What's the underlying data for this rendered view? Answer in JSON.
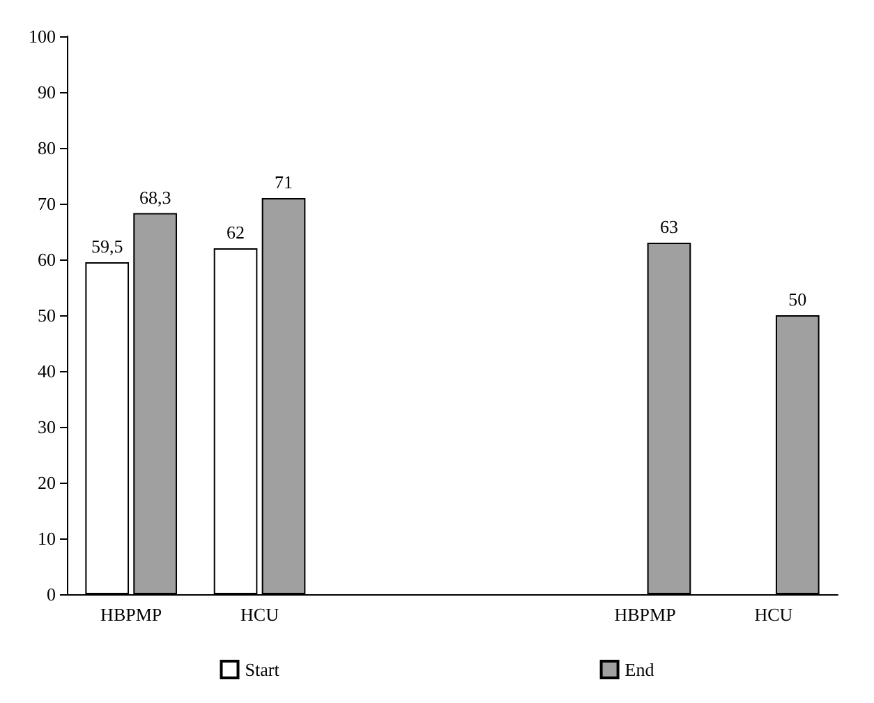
{
  "chart_data": {
    "type": "bar",
    "categories": [
      "HBPMP",
      "HCU",
      null,
      null,
      "HBPMP",
      "HCU"
    ],
    "series": [
      {
        "name": "Start",
        "color": "#ffffff",
        "values": [
          59.5,
          62,
          null,
          null,
          null,
          null
        ],
        "value_labels": [
          "59,5",
          "62",
          null,
          null,
          null,
          null
        ]
      },
      {
        "name": "End",
        "color": "#a0a0a0",
        "values": [
          68.3,
          71,
          null,
          null,
          63,
          50
        ],
        "value_labels": [
          "68,3",
          "71",
          null,
          null,
          "63",
          "50"
        ]
      }
    ],
    "ylim": [
      0,
      100
    ],
    "yticks": [
      0,
      10,
      20,
      30,
      40,
      50,
      60,
      70,
      80,
      90,
      100
    ],
    "grid": false,
    "legend": "bottom"
  }
}
